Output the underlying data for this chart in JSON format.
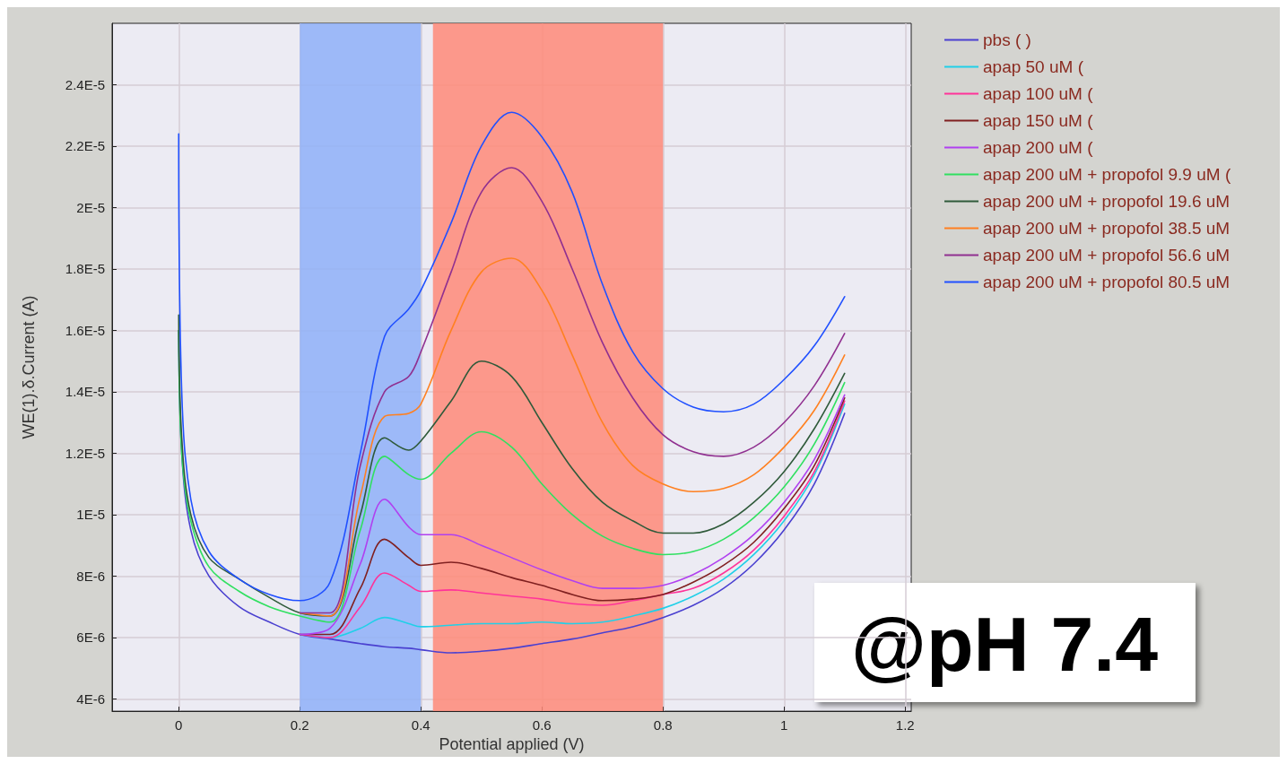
{
  "chart_data": {
    "type": "line",
    "xlabel": "Potential applied (V)",
    "ylabel": "WE(1).δ.Current (A)",
    "x": [
      0,
      0.005,
      0.02,
      0.05,
      0.1,
      0.15,
      0.2,
      0.25,
      0.3,
      0.34,
      0.38,
      0.4,
      0.45,
      0.5,
      0.55,
      0.6,
      0.65,
      0.7,
      0.75,
      0.8,
      0.85,
      0.9,
      0.95,
      1.0,
      1.05,
      1.1
    ],
    "series": [
      {
        "name": "pbs ( )",
        "color": "#4a40d0",
        "values": [
          1.6e-05,
          1.2e-05,
          9.5e-06,
          8e-06,
          7e-06,
          6.5e-06,
          6.1e-06,
          5.95e-06,
          5.8e-06,
          5.7e-06,
          5.65e-06,
          5.6e-06,
          5.5e-06,
          5.55e-06,
          5.65e-06,
          5.8e-06,
          5.95e-06,
          6.15e-06,
          6.35e-06,
          6.65e-06,
          7.05e-06,
          7.6e-06,
          8.4e-06,
          9.5e-06,
          1.1e-05,
          1.33e-05
        ]
      },
      {
        "name": "apap 50 uM (",
        "color": "#20d0e8",
        "values": [
          null,
          null,
          null,
          null,
          null,
          null,
          6.1e-06,
          6e-06,
          6.3e-06,
          6.65e-06,
          6.45e-06,
          6.35e-06,
          6.4e-06,
          6.45e-06,
          6.45e-06,
          6.5e-06,
          6.45e-06,
          6.5e-06,
          6.7e-06,
          6.95e-06,
          7.35e-06,
          7.9e-06,
          8.7e-06,
          9.8e-06,
          1.13e-05,
          1.36e-05
        ]
      },
      {
        "name": "apap 100 uM (",
        "color": "#ff3399",
        "values": [
          null,
          null,
          null,
          null,
          null,
          null,
          6.1e-06,
          6e-06,
          7e-06,
          8.1e-06,
          7.7e-06,
          7.5e-06,
          7.55e-06,
          7.45e-06,
          7.35e-06,
          7.25e-06,
          7.1e-06,
          7.05e-06,
          7.2e-06,
          7.4e-06,
          7.6e-06,
          8.1e-06,
          8.85e-06,
          9.95e-06,
          1.14e-05,
          1.37e-05
        ]
      },
      {
        "name": "apap 150 uM (",
        "color": "#802020",
        "values": [
          null,
          null,
          null,
          null,
          null,
          null,
          6.1e-06,
          6.1e-06,
          7.6e-06,
          9.2e-06,
          8.6e-06,
          8.35e-06,
          8.45e-06,
          8.25e-06,
          7.95e-06,
          7.7e-06,
          7.4e-06,
          7.2e-06,
          7.25e-06,
          7.4e-06,
          7.8e-06,
          8.35e-06,
          9.1e-06,
          1.02e-05,
          1.16e-05,
          1.38e-05
        ]
      },
      {
        "name": "apap 200 uM (",
        "color": "#b040f0",
        "values": [
          null,
          null,
          null,
          null,
          null,
          null,
          6.1e-06,
          6.3e-06,
          8.4e-06,
          1.05e-05,
          9.6e-06,
          9.35e-06,
          9.35e-06,
          9e-06,
          8.6e-06,
          8.2e-06,
          7.85e-06,
          7.6e-06,
          7.6e-06,
          7.7e-06,
          8.05e-06,
          8.6e-06,
          9.35e-06,
          1.04e-05,
          1.18e-05,
          1.39e-05
        ]
      },
      {
        "name": "apap 200 uM + propofol 9.9 uM (",
        "color": "#30e060",
        "values": [
          1.6e-05,
          1.2e-05,
          9.8e-06,
          8.3e-06,
          7.5e-06,
          7e-06,
          6.7e-06,
          6.5e-06,
          9.5e-06,
          1.19e-05,
          1.13e-05,
          1.115e-05,
          1.2e-05,
          1.27e-05,
          1.22e-05,
          1.1e-05,
          1e-05,
          9.3e-06,
          8.9e-06,
          8.7e-06,
          8.8e-06,
          9.2e-06,
          9.9e-06,
          1.09e-05,
          1.23e-05,
          1.43e-05
        ]
      },
      {
        "name": "apap 200 uM + propofol 19.6 uM",
        "color": "#2f5a3a",
        "values": [
          1.65e-05,
          1.25e-05,
          1e-05,
          8.6e-06,
          7.9e-06,
          7.3e-06,
          6.8e-06,
          6.7e-06,
          1e-05,
          1.25e-05,
          1.21e-05,
          1.24e-05,
          1.37e-05,
          1.5e-05,
          1.45e-05,
          1.3e-05,
          1.15e-05,
          1.04e-05,
          9.8e-06,
          9.4e-06,
          9.4e-06,
          9.7e-06,
          1.04e-05,
          1.14e-05,
          1.28e-05,
          1.46e-05
        ]
      },
      {
        "name": "apap 200 uM + propofol 38.5 uM",
        "color": "#ff8020",
        "values": [
          null,
          null,
          null,
          null,
          null,
          null,
          6.8e-06,
          6.7e-06,
          1.06e-05,
          1.32e-05,
          1.33e-05,
          1.36e-05,
          1.6e-05,
          1.79e-05,
          1.835e-05,
          1.73e-05,
          1.52e-05,
          1.3e-05,
          1.16e-05,
          1.1e-05,
          1.075e-05,
          1.085e-05,
          1.13e-05,
          1.22e-05,
          1.34e-05,
          1.52e-05
        ]
      },
      {
        "name": "apap 200 uM + propofol 56.6 uM",
        "color": "#903090",
        "values": [
          null,
          null,
          null,
          null,
          null,
          null,
          6.8e-06,
          6.8e-06,
          1.16e-05,
          1.4e-05,
          1.45e-05,
          1.53e-05,
          1.79e-05,
          2.05e-05,
          2.13e-05,
          2.02e-05,
          1.8e-05,
          1.56e-05,
          1.38e-05,
          1.26e-05,
          1.205e-05,
          1.19e-05,
          1.22e-05,
          1.3e-05,
          1.42e-05,
          1.59e-05
        ]
      },
      {
        "name": "apap 200 uM + propofol 80.5 uM",
        "color": "#2050ff",
        "values": [
          2.24e-05,
          1.4e-05,
          1.05e-05,
          8.8e-06,
          7.9e-06,
          7.4e-06,
          7.2e-06,
          7.8e-06,
          1.2e-05,
          1.58e-05,
          1.67e-05,
          1.73e-05,
          1.95e-05,
          2.2e-05,
          2.31e-05,
          2.23e-05,
          2.05e-05,
          1.75e-05,
          1.53e-05,
          1.41e-05,
          1.35e-05,
          1.335e-05,
          1.36e-05,
          1.44e-05,
          1.55e-05,
          1.71e-05
        ]
      }
    ],
    "xlim": [
      -0.11,
      1.21
    ],
    "xticks": [
      0,
      0.2,
      0.4,
      0.6,
      0.8,
      1,
      1.2
    ],
    "ylim": [
      3.6e-06,
      2.6e-05
    ],
    "yticks": [
      {
        "value": 4e-06,
        "label": "4E-6"
      },
      {
        "value": 6e-06,
        "label": "6E-6"
      },
      {
        "value": 8e-06,
        "label": "8E-6"
      },
      {
        "value": 1e-05,
        "label": "1E-5"
      },
      {
        "value": 1.2e-05,
        "label": "1.2E-5"
      },
      {
        "value": 1.4e-05,
        "label": "1.4E-5"
      },
      {
        "value": 1.6e-05,
        "label": "1.6E-5"
      },
      {
        "value": 1.8e-05,
        "label": "1.8E-5"
      },
      {
        "value": 2e-05,
        "label": "2E-5"
      },
      {
        "value": 2.2e-05,
        "label": "2.2E-5"
      },
      {
        "value": 2.4e-05,
        "label": "2.4E-5"
      }
    ],
    "bands": [
      {
        "axis": "x",
        "from": 0.2,
        "to": 0.4,
        "color": "#8fb0f8"
      },
      {
        "axis": "x",
        "from": 0.42,
        "to": 0.8,
        "color": "#ff8a78"
      }
    ],
    "annotations": [
      "@pH 7.4"
    ],
    "grid": true,
    "legend": "top right",
    "marker": "none",
    "line_style": "solid"
  }
}
